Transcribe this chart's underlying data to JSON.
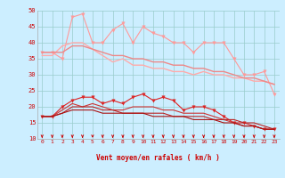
{
  "xlabel": "Vent moyen/en rafales ( km/h )",
  "x": [
    0,
    1,
    2,
    3,
    4,
    5,
    6,
    7,
    8,
    9,
    10,
    11,
    12,
    13,
    14,
    15,
    16,
    17,
    18,
    19,
    20,
    21,
    22,
    23
  ],
  "ylim": [
    10,
    50
  ],
  "xlim": [
    -0.5,
    23.5
  ],
  "bg_color": "#cceeff",
  "series": [
    {
      "data": [
        37,
        37,
        35,
        48,
        49,
        40,
        40,
        44,
        46,
        40,
        45,
        43,
        42,
        40,
        40,
        37,
        40,
        40,
        40,
        35,
        30,
        30,
        31,
        24
      ],
      "color": "#ff9999",
      "lw": 0.8,
      "marker": "v",
      "ms": 2.5
    },
    {
      "data": [
        36,
        36,
        39,
        40,
        40,
        38,
        36,
        34,
        35,
        33,
        33,
        32,
        32,
        31,
        31,
        30,
        31,
        30,
        30,
        29,
        29,
        28,
        28,
        27
      ],
      "color": "#ffaaaa",
      "lw": 1.0,
      "marker": null,
      "ms": 0
    },
    {
      "data": [
        37,
        37,
        37,
        39,
        39,
        38,
        37,
        36,
        36,
        35,
        35,
        34,
        34,
        33,
        33,
        32,
        32,
        31,
        31,
        30,
        29,
        29,
        28,
        27
      ],
      "color": "#ee8888",
      "lw": 1.0,
      "marker": null,
      "ms": 0
    },
    {
      "data": [
        17,
        17,
        20,
        22,
        23,
        23,
        21,
        22,
        21,
        23,
        24,
        22,
        23,
        22,
        19,
        20,
        20,
        19,
        17,
        15,
        15,
        14,
        13,
        13
      ],
      "color": "#dd2222",
      "lw": 0.8,
      "marker": "v",
      "ms": 2.5
    },
    {
      "data": [
        17,
        17,
        19,
        21,
        20,
        21,
        20,
        19,
        19,
        20,
        20,
        20,
        19,
        19,
        18,
        18,
        18,
        17,
        16,
        15,
        14,
        14,
        13,
        13
      ],
      "color": "#cc3333",
      "lw": 0.8,
      "marker": null,
      "ms": 0
    },
    {
      "data": [
        17,
        17,
        18,
        20,
        20,
        20,
        19,
        19,
        18,
        18,
        18,
        18,
        18,
        17,
        17,
        17,
        17,
        16,
        16,
        16,
        15,
        15,
        14,
        13
      ],
      "color": "#bb2222",
      "lw": 0.8,
      "marker": null,
      "ms": 0
    },
    {
      "data": [
        17,
        17,
        18,
        19,
        19,
        19,
        18,
        18,
        18,
        18,
        18,
        17,
        17,
        17,
        17,
        16,
        16,
        16,
        15,
        15,
        14,
        14,
        13,
        13
      ],
      "color": "#aa1111",
      "lw": 0.8,
      "marker": null,
      "ms": 0
    }
  ],
  "yticks": [
    10,
    15,
    20,
    25,
    30,
    35,
    40,
    45,
    50
  ],
  "xticks": [
    0,
    1,
    2,
    3,
    4,
    5,
    6,
    7,
    8,
    9,
    10,
    11,
    12,
    13,
    14,
    15,
    16,
    17,
    18,
    19,
    20,
    21,
    22,
    23
  ],
  "arrow_color": "#cc0000",
  "grid_color": "#99cccc",
  "tick_color": "#cc0000",
  "label_color": "#cc0000"
}
